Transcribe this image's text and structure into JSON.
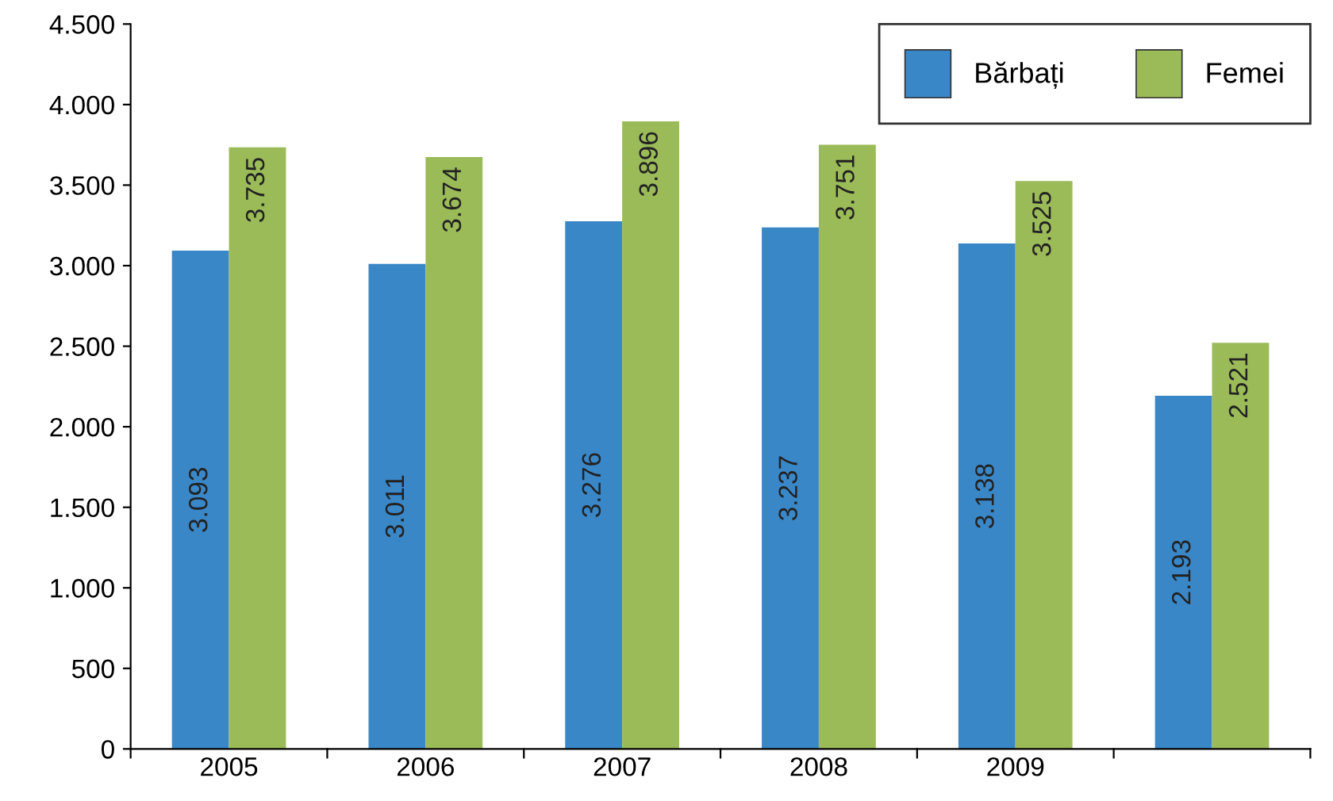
{
  "chart_data": {
    "type": "bar",
    "categories": [
      "2005",
      "2006",
      "2007",
      "2008",
      "2009",
      null
    ],
    "series": [
      {
        "name": "Bărbați",
        "color": "#3a87c8",
        "values": [
          3093,
          3011,
          3276,
          3237,
          3138,
          2193
        ],
        "value_labels": [
          "3.093",
          "3.011",
          "3.276",
          "3.237",
          "3.138",
          "2.193"
        ]
      },
      {
        "name": "Femei",
        "color": "#9bbb59",
        "values": [
          3735,
          3674,
          3896,
          3751,
          3525,
          2521
        ],
        "value_labels": [
          "3.735",
          "3.674",
          "3.896",
          "3.751",
          "3.525",
          "2.521"
        ]
      }
    ],
    "ylim": [
      0,
      4500
    ],
    "yticks": [
      0,
      {
        "value": 500,
        "label": "500"
      },
      {
        "value": 1000,
        "label": "1.000"
      },
      {
        "value": 1500,
        "label": "1.500"
      },
      {
        "value": 2000,
        "label": "2.000"
      },
      {
        "value": 2500,
        "label": "2.500"
      },
      {
        "value": 3000,
        "label": "3.000"
      },
      {
        "value": 3500,
        "label": "3.500"
      },
      {
        "value": 4000,
        "label": "4.000"
      },
      {
        "value": 4500,
        "label": "4.500"
      }
    ],
    "grid": false,
    "legend": "top right"
  }
}
